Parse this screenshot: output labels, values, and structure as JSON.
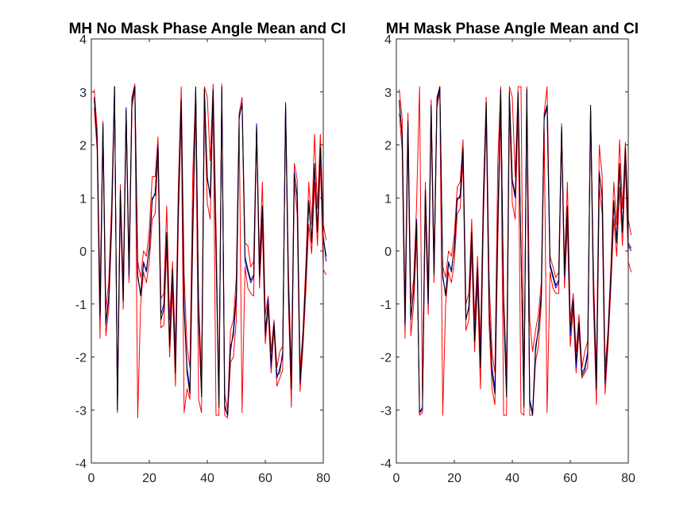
{
  "figure": {
    "background": "#ffffff"
  },
  "chart_data": [
    {
      "type": "line",
      "title": "MH No Mask Phase Angle Mean and CI",
      "xlabel": "",
      "ylabel": "",
      "xlim": [
        0,
        80
      ],
      "ylim": [
        -4,
        4
      ],
      "xticks": [
        "0",
        "20",
        "40",
        "60",
        "80"
      ],
      "yticks": [
        "-4",
        "-3",
        "-2",
        "-1",
        "0",
        "1",
        "2",
        "3",
        "4"
      ],
      "grid": false,
      "legend": "none",
      "series": [
        {
          "color": "#0000ff",
          "role": "mean",
          "values": [
            2.85,
            2.1,
            -1.25,
            2.35,
            -1.4,
            -0.9,
            0.6,
            3.1,
            -3.0,
            1.1,
            -0.9,
            2.7,
            -0.5,
            2.8,
            3.1,
            -0.5,
            -0.8,
            -0.2,
            -0.4,
            0.1,
            1.0,
            1.05,
            2.0,
            -1.2,
            -1.0,
            0.3,
            -1.7,
            -0.4,
            -2.2,
            0.8,
            2.8,
            -1.0,
            -2.2,
            -2.6,
            0.5,
            3.05,
            -1.3,
            -2.7,
            3.0,
            1.4,
            1.0,
            3.0,
            0.0,
            -2.9,
            3.05,
            -2.9,
            -3.1,
            -1.8,
            -1.6,
            -0.9,
            2.5,
            2.8,
            -0.2,
            -0.4,
            -0.6,
            -0.5,
            2.4,
            -0.5,
            0.8,
            -1.6,
            -0.9,
            -2.2,
            -1.35,
            -2.4,
            -2.2,
            -2.0,
            2.8,
            -0.8,
            -2.5,
            1.5,
            1.0,
            -2.5,
            -1.6,
            -0.5,
            0.9,
            0.2,
            1.6,
            0.4,
            1.9,
            0.3,
            -0.2
          ]
        },
        {
          "color": "#000000",
          "role": "mean",
          "values": [
            2.9,
            2.05,
            -1.2,
            2.4,
            -1.35,
            -0.85,
            0.55,
            3.1,
            -3.0,
            1.15,
            -0.95,
            2.65,
            -0.45,
            2.85,
            3.1,
            -0.45,
            -0.85,
            -0.25,
            -0.35,
            0.05,
            0.95,
            1.1,
            1.95,
            -1.3,
            -1.1,
            0.35,
            -1.8,
            -0.35,
            -2.3,
            0.85,
            2.85,
            -1.1,
            -2.3,
            -2.7,
            0.55,
            3.1,
            -1.2,
            -2.75,
            3.05,
            1.35,
            1.05,
            3.05,
            0.05,
            -2.95,
            3.1,
            -2.95,
            -3.1,
            -1.9,
            -1.5,
            -0.8,
            2.55,
            2.75,
            -0.1,
            -0.35,
            -0.55,
            -0.45,
            2.35,
            -0.45,
            0.85,
            -1.5,
            -1.0,
            -2.1,
            -1.4,
            -2.35,
            -2.3,
            -1.9,
            2.75,
            -0.7,
            -2.6,
            1.45,
            1.05,
            -2.45,
            -1.65,
            -0.45,
            0.95,
            0.15,
            1.65,
            0.35,
            1.95,
            0.25,
            -0.1
          ]
        },
        {
          "color": "#ff0000",
          "role": "ci-upper",
          "values": [
            3.05,
            2.3,
            -0.9,
            2.45,
            -1.1,
            -0.6,
            0.9,
            3.1,
            -2.8,
            1.25,
            -0.6,
            2.7,
            -0.2,
            2.9,
            3.15,
            -0.2,
            -0.5,
            0.0,
            -0.1,
            0.4,
            1.4,
            1.4,
            2.15,
            -0.9,
            -0.8,
            0.85,
            -1.3,
            -0.2,
            -1.9,
            1.2,
            3.1,
            -0.45,
            -1.8,
            -2.2,
            1.5,
            3.05,
            -0.9,
            -2.4,
            3.1,
            2.9,
            1.7,
            3.15,
            0.5,
            -2.7,
            3.15,
            -2.7,
            -3.0,
            -1.5,
            -1.3,
            -0.5,
            2.6,
            2.9,
            0.15,
            0.1,
            -0.3,
            -0.2,
            2.4,
            -0.2,
            1.3,
            -1.2,
            -0.85,
            -1.9,
            -1.3,
            -2.2,
            -1.9,
            -1.8,
            2.75,
            -0.4,
            -2.3,
            1.65,
            1.35,
            -2.25,
            -1.5,
            -0.25,
            1.3,
            0.5,
            2.2,
            0.8,
            2.2,
            0.5,
            0.2
          ]
        },
        {
          "color": "#ff0000",
          "role": "ci-lower",
          "values": [
            2.7,
            1.9,
            -1.65,
            2.3,
            -1.6,
            -1.1,
            0.4,
            3.05,
            -3.05,
            0.9,
            -1.1,
            2.55,
            -0.6,
            2.7,
            3.05,
            -3.15,
            -1.0,
            -0.4,
            -0.6,
            -0.2,
            0.6,
            0.7,
            1.8,
            -1.45,
            -1.4,
            0.1,
            -2.0,
            -0.7,
            -2.55,
            0.5,
            2.6,
            -3.05,
            -2.6,
            -2.8,
            0.2,
            2.8,
            -2.8,
            -3.05,
            2.75,
            0.9,
            0.6,
            2.9,
            -3.1,
            -3.1,
            3.0,
            -3.1,
            -3.15,
            -2.1,
            -2.0,
            -1.3,
            2.4,
            -3.05,
            -0.3,
            -0.7,
            -0.8,
            -0.85,
            2.3,
            -0.7,
            0.5,
            -1.75,
            -1.1,
            -2.3,
            -1.45,
            -2.55,
            -2.4,
            -2.25,
            2.7,
            -1.0,
            -2.95,
            1.3,
            0.7,
            -2.65,
            -1.8,
            -0.75,
            0.5,
            -0.05,
            1.3,
            0.1,
            1.7,
            -0.35,
            -0.45
          ]
        }
      ]
    },
    {
      "type": "line",
      "title": "MH Mask Phase Angle Mean and CI",
      "xlabel": "",
      "ylabel": "",
      "xlim": [
        0,
        80
      ],
      "ylim": [
        -4,
        4
      ],
      "xticks": [
        "0",
        "20",
        "40",
        "60",
        "80"
      ],
      "yticks": [
        "-4",
        "-3",
        "-2",
        "-1",
        "0",
        "1",
        "2",
        "3",
        "4"
      ],
      "grid": false,
      "legend": "none",
      "series": [
        {
          "color": "#0000ff",
          "role": "mean",
          "values": [
            2.8,
            2.2,
            -1.4,
            2.4,
            -1.3,
            -0.7,
            0.6,
            -3.05,
            -3.0,
            1.1,
            -1.0,
            2.7,
            -0.4,
            2.8,
            3.05,
            -0.5,
            -0.8,
            -0.2,
            -0.4,
            0.1,
            1.0,
            1.0,
            1.9,
            -1.25,
            -1.1,
            0.3,
            -1.6,
            -0.3,
            -2.1,
            0.8,
            2.7,
            -1.1,
            -2.2,
            -2.6,
            0.5,
            3.0,
            -1.0,
            -2.7,
            2.9,
            1.3,
            1.0,
            2.9,
            0.0,
            -2.9,
            3.0,
            -2.8,
            -3.05,
            -1.8,
            -1.5,
            -0.8,
            2.5,
            2.7,
            -0.3,
            -0.5,
            -0.7,
            -0.6,
            2.3,
            -0.5,
            0.8,
            -1.6,
            -0.9,
            -2.2,
            -1.4,
            -2.3,
            -2.2,
            -1.9,
            2.7,
            -0.8,
            -2.5,
            1.5,
            1.0,
            -2.5,
            -1.6,
            -0.5,
            0.9,
            0.2,
            1.6,
            0.4,
            1.9,
            0.1,
            0.0
          ]
        },
        {
          "color": "#000000",
          "role": "mean",
          "values": [
            2.85,
            2.15,
            -1.35,
            2.45,
            -1.25,
            -0.75,
            0.55,
            -3.05,
            -2.95,
            1.15,
            -0.95,
            2.75,
            -0.45,
            2.85,
            3.1,
            -0.45,
            -0.85,
            -0.25,
            -0.35,
            0.05,
            0.95,
            1.05,
            1.95,
            -1.3,
            -1.05,
            0.35,
            -1.7,
            -0.35,
            -2.2,
            0.85,
            2.8,
            -1.05,
            -2.3,
            -2.7,
            0.55,
            3.05,
            -1.1,
            -2.75,
            3.0,
            1.35,
            1.05,
            3.0,
            0.05,
            -2.95,
            3.05,
            -2.85,
            -3.1,
            -1.9,
            -1.45,
            -0.85,
            2.55,
            2.75,
            -0.25,
            -0.45,
            -0.65,
            -0.55,
            2.35,
            -0.45,
            0.85,
            -1.5,
            -0.95,
            -2.1,
            -1.35,
            -2.35,
            -2.25,
            -1.95,
            2.75,
            -0.75,
            -2.6,
            1.45,
            1.05,
            -2.45,
            -1.65,
            -0.45,
            0.95,
            0.15,
            1.65,
            0.35,
            1.95,
            0.15,
            0.05
          ]
        },
        {
          "color": "#ff0000",
          "role": "ci-upper",
          "values": [
            3.05,
            2.5,
            -1.1,
            2.6,
            -1.0,
            -0.5,
            0.9,
            3.1,
            -2.8,
            1.3,
            -0.7,
            2.85,
            -0.2,
            2.9,
            3.1,
            -0.3,
            -0.5,
            0.0,
            -0.1,
            0.3,
            1.2,
            1.3,
            2.1,
            -1.0,
            -0.8,
            0.6,
            -1.3,
            -0.1,
            -1.8,
            1.1,
            2.9,
            -0.5,
            -1.9,
            -2.3,
            1.7,
            3.1,
            -0.8,
            -2.3,
            3.1,
            2.9,
            1.4,
            3.1,
            3.1,
            -2.7,
            3.1,
            -1.3,
            -1.9,
            -1.5,
            -1.2,
            -0.6,
            2.6,
            3.1,
            -0.1,
            -0.3,
            -0.5,
            -0.4,
            2.4,
            -0.3,
            1.3,
            -1.3,
            -0.8,
            -1.9,
            -1.2,
            -2.2,
            -1.9,
            -1.7,
            2.7,
            -0.4,
            -2.3,
            2.0,
            1.4,
            -2.2,
            -1.5,
            -0.3,
            1.3,
            0.5,
            2.1,
            0.8,
            2.05,
            0.6,
            0.3
          ]
        },
        {
          "color": "#ff0000",
          "role": "ci-lower",
          "values": [
            2.6,
            1.9,
            -1.65,
            2.2,
            -1.6,
            -1.0,
            0.3,
            -3.1,
            -3.05,
            0.8,
            -1.2,
            2.5,
            -0.6,
            2.7,
            3.0,
            -3.1,
            -1.0,
            -0.4,
            -0.6,
            -0.2,
            0.7,
            0.8,
            1.7,
            -1.5,
            -1.3,
            0.0,
            -1.9,
            -0.6,
            -2.6,
            0.5,
            2.6,
            -1.4,
            -2.6,
            -2.9,
            0.2,
            2.7,
            -3.1,
            -3.1,
            2.7,
            0.9,
            0.6,
            2.7,
            -3.05,
            -3.1,
            2.9,
            -3.1,
            -3.1,
            -2.1,
            -1.8,
            -1.0,
            2.3,
            -3.05,
            -0.4,
            -0.7,
            -0.8,
            -0.8,
            2.2,
            -0.7,
            0.5,
            -1.8,
            -1.1,
            -2.3,
            -1.5,
            -2.4,
            -2.3,
            -2.2,
            2.6,
            -1.0,
            -2.9,
            1.2,
            0.7,
            -2.7,
            -1.8,
            -0.7,
            0.6,
            -0.1,
            1.2,
            0.1,
            1.7,
            -0.2,
            -0.4
          ]
        }
      ]
    }
  ]
}
